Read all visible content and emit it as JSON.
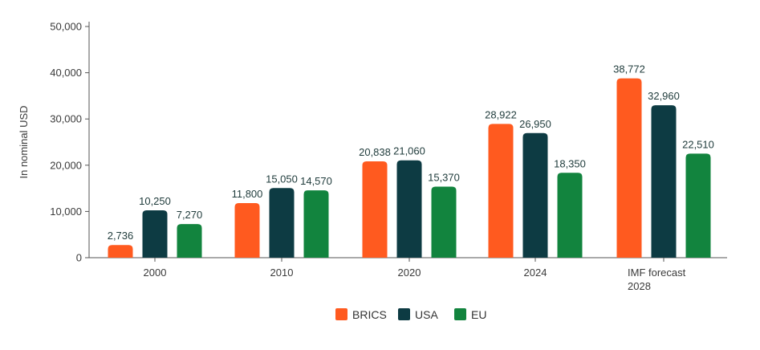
{
  "chart_data": {
    "type": "bar",
    "ylabel": "In nominal USD",
    "ylim": [
      0,
      50000
    ],
    "yticks": [
      0,
      10000,
      20000,
      30000,
      40000,
      50000
    ],
    "ytick_labels": [
      "0",
      "10,000",
      "20,000",
      "30,000",
      "40,000",
      "50,000"
    ],
    "categories": [
      [
        "2000"
      ],
      [
        "2010"
      ],
      [
        "2020"
      ],
      [
        "2024"
      ],
      [
        "IMF forecast",
        "2028"
      ]
    ],
    "series": [
      {
        "name": "BRICS",
        "color": "#ff5a1f",
        "values": [
          2736,
          11800,
          20838,
          28922,
          38772
        ],
        "labels": [
          "2,736",
          "11,800",
          "20,838",
          "28,922",
          "38,772"
        ]
      },
      {
        "name": "USA",
        "color": "#0d3b43",
        "values": [
          10250,
          15050,
          21060,
          26950,
          32960
        ],
        "labels": [
          "10,250",
          "15,050",
          "21,060",
          "26,950",
          "32,960"
        ]
      },
      {
        "name": "EU",
        "color": "#12843e",
        "values": [
          7270,
          14570,
          15370,
          18350,
          22510
        ],
        "labels": [
          "7,270",
          "14,570",
          "15,370",
          "18,350",
          "22,510"
        ]
      }
    ],
    "legend": "bottom-center",
    "grid": false
  }
}
